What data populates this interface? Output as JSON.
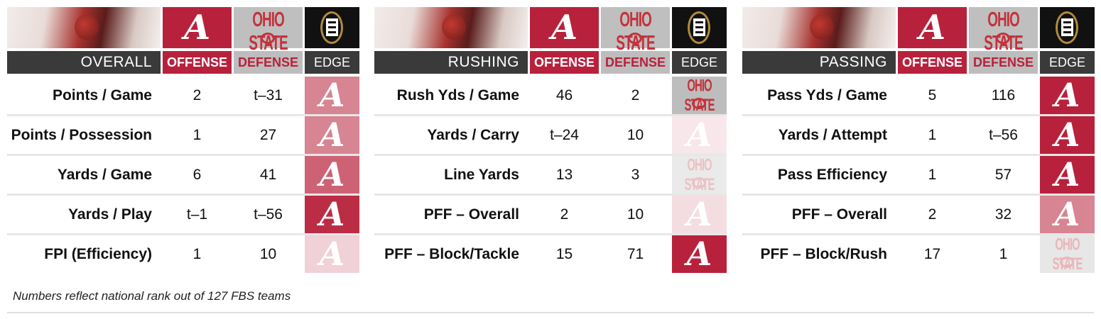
{
  "columns": {
    "offense": "OFFENSE",
    "defense": "DEFENSE",
    "edge": "EDGE"
  },
  "logos": {
    "offense_team": "alabama-logo",
    "defense_team": "ohio-state-logo",
    "edge": "cfp-logo",
    "osu_text": "OHIO STATE"
  },
  "colors": {
    "alabama": "#b8213c",
    "ohio_state_gray": "#bdbdbd",
    "header_dark": "#3a3a3a"
  },
  "panels": [
    {
      "title": "OVERALL",
      "rows": [
        {
          "label": "Points / Game",
          "offense": "2",
          "defense": "t–31",
          "edge": "alabama",
          "strength": 0.55
        },
        {
          "label": "Points / Possession",
          "offense": "1",
          "defense": "27",
          "edge": "alabama",
          "strength": 0.55
        },
        {
          "label": "Yards / Game",
          "offense": "6",
          "defense": "41",
          "edge": "alabama",
          "strength": 0.7
        },
        {
          "label": "Yards / Play",
          "offense": "t–1",
          "defense": "t–56",
          "edge": "alabama",
          "strength": 0.95
        },
        {
          "label": "FPI (Efficiency)",
          "offense": "1",
          "defense": "10",
          "edge": "alabama",
          "strength": 0.2
        }
      ]
    },
    {
      "title": "RUSHING",
      "rows": [
        {
          "label": "Rush Yds / Game",
          "offense": "46",
          "defense": "2",
          "edge": "ohio-state",
          "strength": 1.0
        },
        {
          "label": "Yards / Carry",
          "offense": "t–24",
          "defense": "10",
          "edge": "alabama",
          "strength": 0.1
        },
        {
          "label": "Line Yards",
          "offense": "13",
          "defense": "3",
          "edge": "ohio-state",
          "strength": 0.3
        },
        {
          "label": "PFF – Overall",
          "offense": "2",
          "defense": "10",
          "edge": "alabama",
          "strength": 0.15
        },
        {
          "label": "PFF – Block/Tackle",
          "offense": "15",
          "defense": "71",
          "edge": "alabama",
          "strength": 1.0
        }
      ]
    },
    {
      "title": "PASSING",
      "rows": [
        {
          "label": "Pass Yds / Game",
          "offense": "5",
          "defense": "116",
          "edge": "alabama",
          "strength": 1.0
        },
        {
          "label": "Yards / Attempt",
          "offense": "1",
          "defense": "t–56",
          "edge": "alabama",
          "strength": 1.0
        },
        {
          "label": "Pass Efficiency",
          "offense": "1",
          "defense": "57",
          "edge": "alabama",
          "strength": 1.0
        },
        {
          "label": "PFF – Overall",
          "offense": "2",
          "defense": "32",
          "edge": "alabama",
          "strength": 0.55
        },
        {
          "label": "PFF – Block/Rush",
          "offense": "17",
          "defense": "1",
          "edge": "ohio-state",
          "strength": 0.35
        }
      ]
    }
  ],
  "footnote": "Numbers reflect national rank out of 127 FBS teams"
}
